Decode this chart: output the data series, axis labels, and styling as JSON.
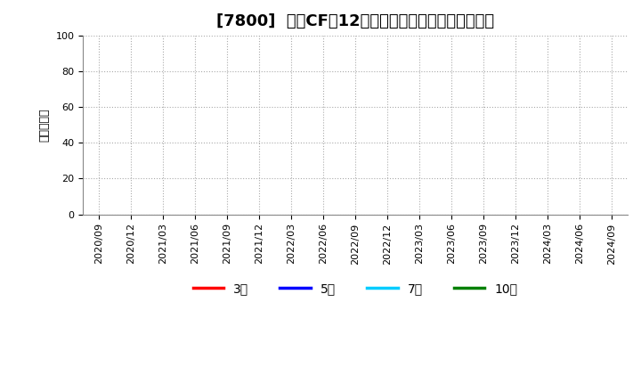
{
  "title": "[7800]  投資CFの12か月移動合計の標準偏差の推移",
  "ylabel": "（百万円）",
  "ylim": [
    0,
    100
  ],
  "yticks": [
    0,
    20,
    40,
    60,
    80,
    100
  ],
  "xtick_labels": [
    "2020/09",
    "2020/12",
    "2021/03",
    "2021/06",
    "2021/09",
    "2021/12",
    "2022/03",
    "2022/06",
    "2022/09",
    "2022/12",
    "2023/03",
    "2023/06",
    "2023/09",
    "2023/12",
    "2024/03",
    "2024/06",
    "2024/09"
  ],
  "legend_entries": [
    {
      "label": "3年",
      "color": "#ff0000"
    },
    {
      "label": "5年",
      "color": "#0000ff"
    },
    {
      "label": "7年",
      "color": "#00ccff"
    },
    {
      "label": "10年",
      "color": "#008000"
    }
  ],
  "background_color": "#ffffff",
  "plot_bg_color": "#ffffff",
  "grid_color": "#aaaaaa",
  "title_fontsize": 13,
  "axis_fontsize": 8,
  "ylabel_fontsize": 9,
  "legend_fontsize": 10
}
